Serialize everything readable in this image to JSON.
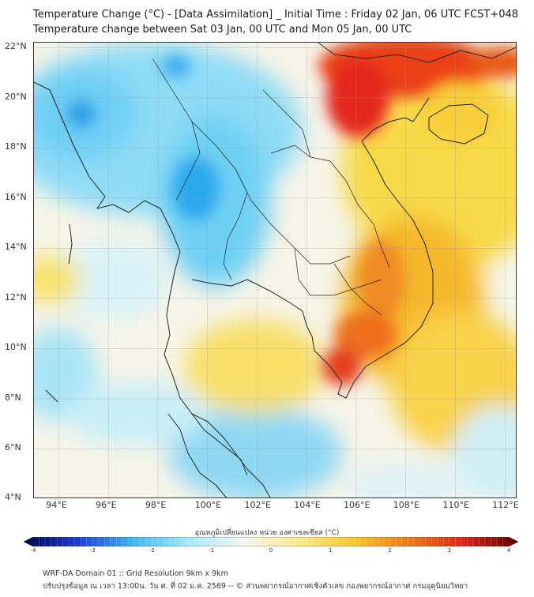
{
  "header": {
    "title_line1": "Temperature Change (°C) - [Data Assimilation] _ Initial Time : Friday 02 Jan, 06 UTC FCST+048",
    "title_line2": "Temperature change between Sat 03 Jan, 00 UTC and Mon 05 Jan, 00 UTC"
  },
  "map": {
    "lat_labels": [
      "22°N",
      "20°N",
      "18°N",
      "16°N",
      "14°N",
      "12°N",
      "10°N",
      "8°N",
      "6°N",
      "4°N"
    ],
    "lon_labels": [
      "94°E",
      "96°E",
      "98°E",
      "100°E",
      "102°E",
      "104°E",
      "106°E",
      "108°E",
      "110°E",
      "112°E"
    ],
    "lat_values": [
      22,
      20,
      18,
      16,
      14,
      12,
      10,
      8,
      6,
      4
    ],
    "lon_values": [
      94,
      96,
      98,
      100,
      102,
      104,
      106,
      108,
      110,
      112
    ]
  },
  "colorbar": {
    "title": "อุณหภูมิเปลี่ยนแปลง หน่วย องศาเซลเซียส (°C)",
    "tick_labels": [
      "-4",
      "-3",
      "-2",
      "-1",
      "0",
      "1",
      "2",
      "3",
      "4"
    ],
    "min": -4,
    "max": 4,
    "colors": {
      "cold_extreme": "#00004a",
      "cold_strong": "#1e3cd8",
      "cold": "#3fb8f0",
      "cool": "#a6e8f8",
      "neutral": "#f5f5f0",
      "warm": "#f8e98c",
      "warmer": "#f7c828",
      "hot": "#ee7a14",
      "hot_strong": "#e0241a",
      "hot_extreme": "#5a0000"
    }
  },
  "footer": {
    "line1": "WRF-DA Domain 01 :: Grid Resolution 9km x 9km",
    "line2": "ปรับปรุงข้อมูล ณ เวลา 13:00น. วัน ศ. ที่ 02 ม.ค. 2569 -- © ส่วนพยากรณ์อากาศเชิงตัวเลข กองพยากรณ์อากาศ กรมอุตุนิยมวิทยา"
  }
}
